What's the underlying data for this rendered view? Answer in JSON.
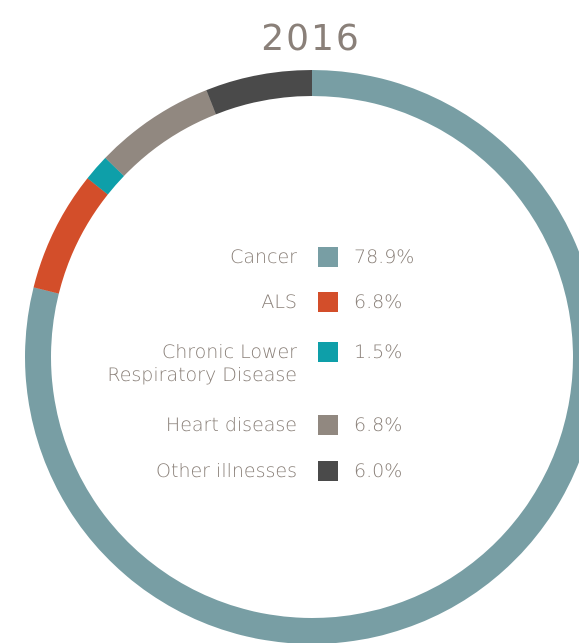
{
  "chart_data": {
    "type": "donut",
    "title": "2016",
    "categories": [
      "Cancer",
      "ALS",
      "Chronic Lower\nRespiratory Disease",
      "Heart disease",
      "Other illnesses"
    ],
    "values": [
      78.9,
      6.8,
      1.5,
      6.8,
      6.0
    ],
    "value_labels": [
      "78.9%",
      "6.8%",
      "1.5%",
      "6.8%",
      "6.0%"
    ],
    "colors": [
      "#789ea4",
      "#d34e2a",
      "#0e9fa9",
      "#918880",
      "#4a4a4a"
    ]
  }
}
